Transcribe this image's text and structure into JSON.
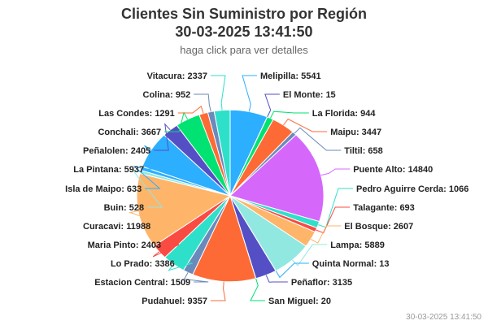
{
  "chart_data": {
    "type": "pie",
    "title": "Clientes Sin Suministro por Región",
    "title_line2": "30-03-2025 13:41:50",
    "subtitle": "haga click para ver detalles",
    "credit_timestamp": "30-03-2025 13:41:50",
    "legend": "none",
    "slices": [
      {
        "name": "Melipilla",
        "value": 5541,
        "color": "#2caffe"
      },
      {
        "name": "El Monte",
        "value": 15,
        "color": "#544fc5"
      },
      {
        "name": "La Florida",
        "value": 944,
        "color": "#00e272"
      },
      {
        "name": "Maipu",
        "value": 3447,
        "color": "#fe6a35"
      },
      {
        "name": "Tiltil",
        "value": 658,
        "color": "#6b8abc"
      },
      {
        "name": "Puente Alto",
        "value": 14840,
        "color": "#d568fb"
      },
      {
        "name": "Pedro Aguirre Cerda",
        "value": 1066,
        "color": "#2ee0ca"
      },
      {
        "name": "Talagante",
        "value": 693,
        "color": "#fa4b42"
      },
      {
        "name": "El Bosque",
        "value": 2607,
        "color": "#feb56a"
      },
      {
        "name": "Lampa",
        "value": 5889,
        "color": "#91e8e1"
      },
      {
        "name": "Quinta Normal",
        "value": 13,
        "color": "#2caffe"
      },
      {
        "name": "Peñaflor",
        "value": 3135,
        "color": "#544fc5"
      },
      {
        "name": "San Miguel",
        "value": 20,
        "color": "#00e272"
      },
      {
        "name": "Pudahuel",
        "value": 9357,
        "color": "#fe6a35"
      },
      {
        "name": "Estacion Central",
        "value": 1509,
        "color": "#6b8abc"
      },
      {
        "name": "Lo Prado",
        "value": 3386,
        "color": "#2ee0ca"
      },
      {
        "name": "Maria Pinto",
        "value": 2403,
        "color": "#fa4b42"
      },
      {
        "name": "Curacavi",
        "value": 11988,
        "color": "#feb56a"
      },
      {
        "name": "Buin",
        "value": 528,
        "color": "#91e8e1"
      },
      {
        "name": "Isla de Maipo",
        "value": 633,
        "color": "#2caffe"
      },
      {
        "name": "La Pintana",
        "value": 5937,
        "color": "#2caffe"
      },
      {
        "name": "Peñalolen",
        "value": 2405,
        "color": "#544fc5"
      },
      {
        "name": "Conchali",
        "value": 3667,
        "color": "#00e272"
      },
      {
        "name": "Las Condes",
        "value": 1291,
        "color": "#fe6a35"
      },
      {
        "name": "Colina",
        "value": 952,
        "color": "#6b8abc"
      },
      {
        "name": "Vitacura",
        "value": 2337,
        "color": "#2ee0ca"
      }
    ]
  }
}
